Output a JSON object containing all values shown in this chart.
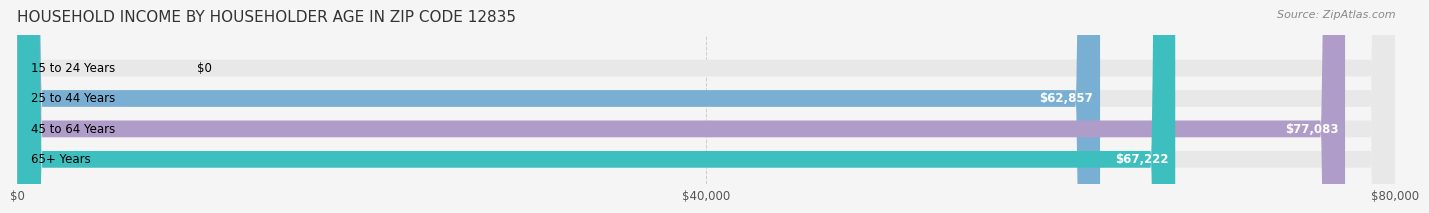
{
  "title": "HOUSEHOLD INCOME BY HOUSEHOLDER AGE IN ZIP CODE 12835",
  "source": "Source: ZipAtlas.com",
  "categories": [
    "15 to 24 Years",
    "25 to 44 Years",
    "45 to 64 Years",
    "65+ Years"
  ],
  "values": [
    0,
    62857,
    77083,
    67222
  ],
  "bar_colors": [
    "#f08080",
    "#7aafd4",
    "#b09cc8",
    "#3dbfbf"
  ],
  "bg_bar_color": "#e8e8e8",
  "value_labels": [
    "$0",
    "$62,857",
    "$77,083",
    "$67,222"
  ],
  "xlim": [
    0,
    80000
  ],
  "xticks": [
    0,
    40000,
    80000
  ],
  "xtick_labels": [
    "$0",
    "$40,000",
    "$80,000"
  ],
  "title_fontsize": 11,
  "source_fontsize": 8,
  "label_fontsize": 8.5,
  "value_fontsize": 8.5,
  "bar_height": 0.55,
  "background_color": "#f5f5f5"
}
